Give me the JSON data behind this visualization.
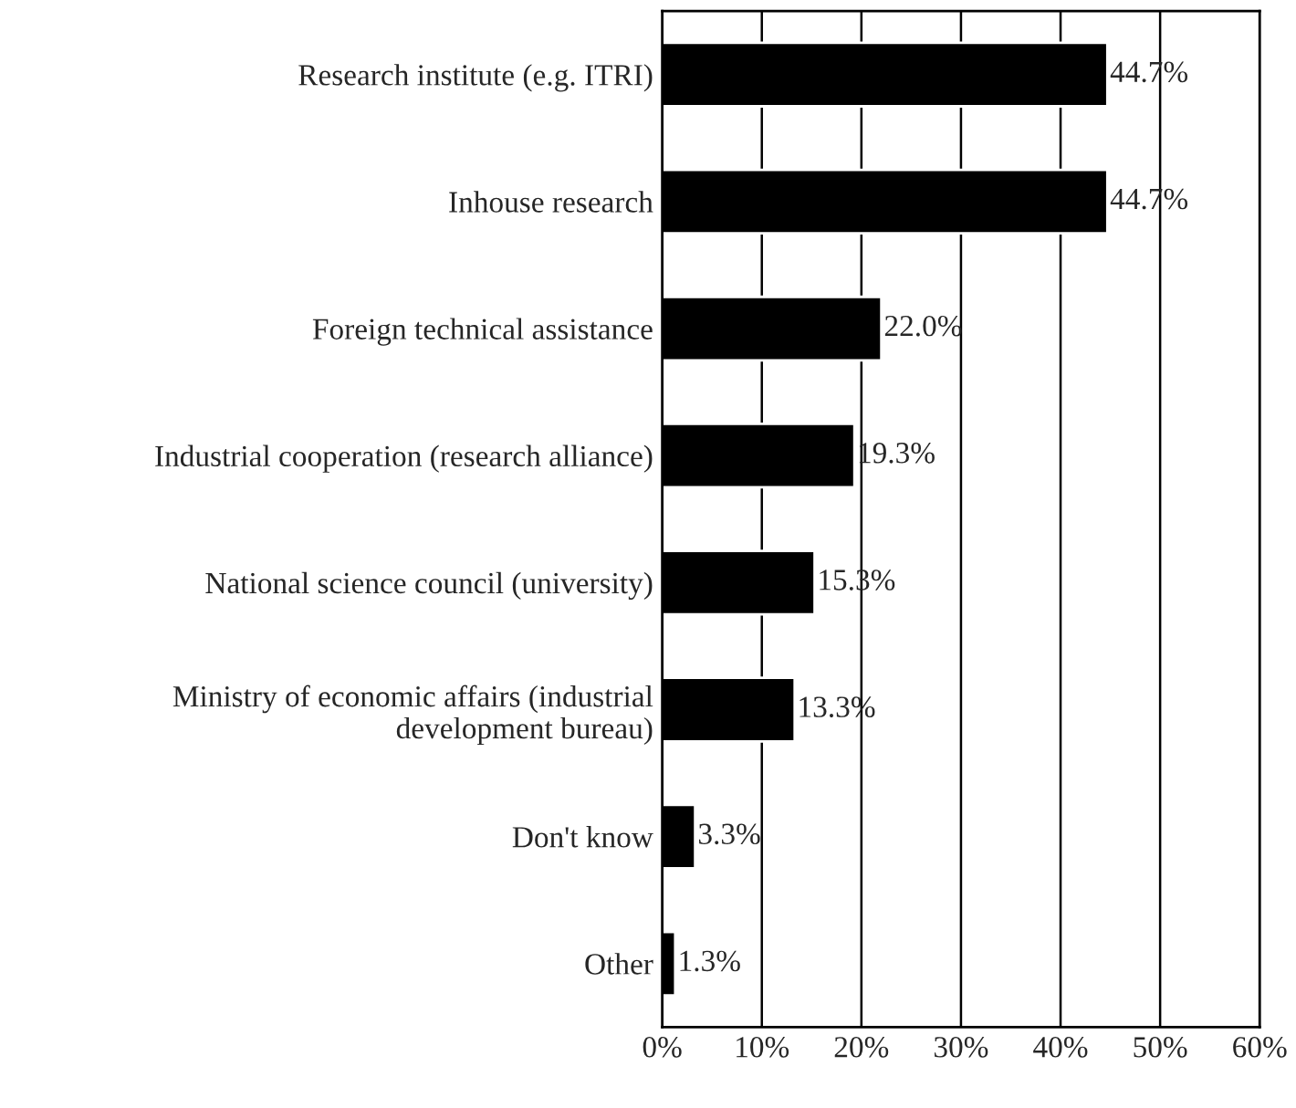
{
  "chart_data": {
    "type": "bar",
    "orientation": "horizontal",
    "categories": [
      "Research institute (e.g. ITRI)",
      "Inhouse research",
      "Foreign technical assistance",
      "Industrial cooperation (research alliance)",
      "National science council (university)",
      "Ministry of economic affairs (industrial\ndevelopment bureau)",
      "Don't know",
      "Other"
    ],
    "values": [
      44.7,
      44.7,
      22.0,
      19.3,
      15.3,
      13.3,
      3.3,
      1.3
    ],
    "value_labels": [
      "44.7%",
      "44.7%",
      "22.0%",
      "19.3%",
      "15.3%",
      "13.3%",
      "3.3%",
      "1.3%"
    ],
    "color": "#000000",
    "xlim": [
      0,
      60
    ],
    "xticks": [
      {
        "value": 0,
        "label": "0%"
      },
      {
        "value": 10,
        "label": "10%"
      },
      {
        "value": 20,
        "label": "20%"
      },
      {
        "value": 30,
        "label": "30%"
      },
      {
        "value": 40,
        "label": "40%"
      },
      {
        "value": 50,
        "label": "50%"
      },
      {
        "value": 60,
        "label": "60%"
      }
    ],
    "grid": "x",
    "legend": false
  }
}
